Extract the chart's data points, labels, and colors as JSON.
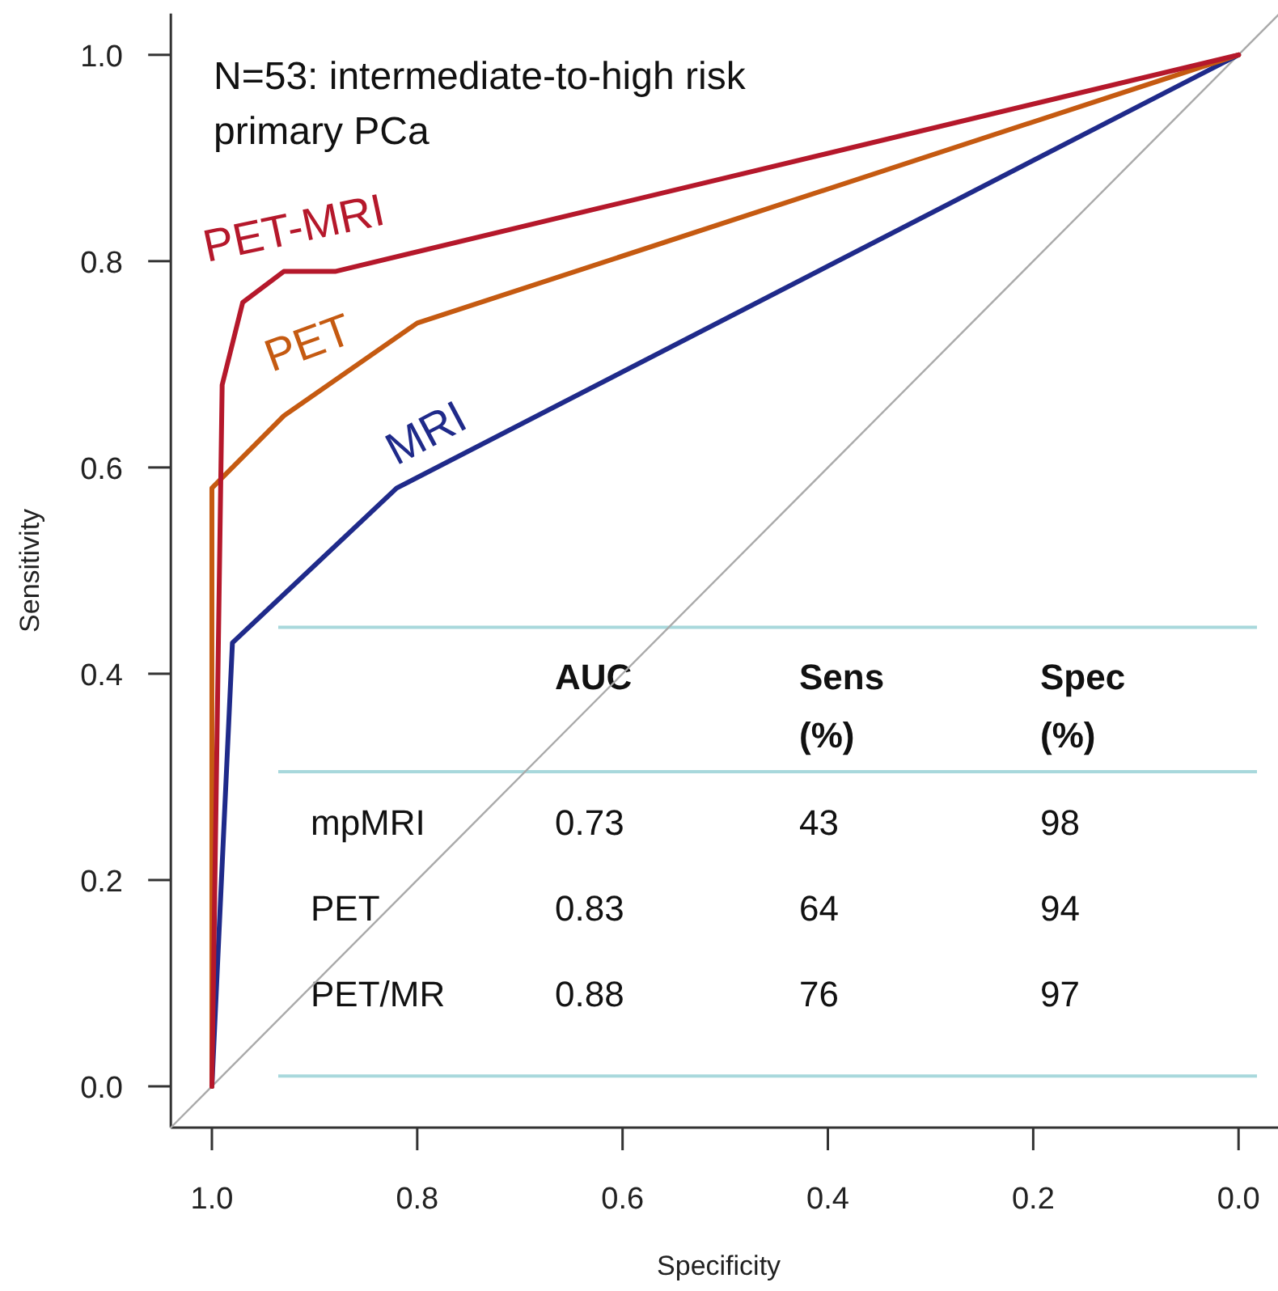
{
  "chart_data": {
    "type": "line",
    "title": "N=53: intermediate-to-high risk primary PCa",
    "xlabel": "Specificity",
    "ylabel": "Sensitivity",
    "xlim": [
      1.04,
      -0.04
    ],
    "ylim": [
      -0.04,
      1.04
    ],
    "xticks": [
      {
        "value": 1,
        "label": "1.0"
      },
      {
        "value": 0.8,
        "label": "0.8"
      },
      {
        "value": 0.6,
        "label": "0.6"
      },
      {
        "value": 0.4,
        "label": "0.4"
      },
      {
        "value": 0.2,
        "label": "0.2"
      },
      {
        "value": 0,
        "label": "0.0"
      }
    ],
    "yticks": [
      {
        "value": 0,
        "label": "0.0"
      },
      {
        "value": 0.2,
        "label": "0.2"
      },
      {
        "value": 0.4,
        "label": "0.4"
      },
      {
        "value": 0.6,
        "label": "0.6"
      },
      {
        "value": 0.8,
        "label": "0.8"
      },
      {
        "value": 1,
        "label": "1.0"
      }
    ],
    "grid": false,
    "ref_lines": [
      {
        "axis": "y",
        "value": 0.445,
        "color": "#a8d8dc"
      },
      {
        "axis": "y",
        "value": 0.305,
        "color": "#a8d8dc"
      },
      {
        "axis": "y",
        "value": 0.01,
        "color": "#a8d8dc"
      }
    ],
    "series": [
      {
        "color": "#aaaaaa",
        "x": [
          1.04,
          -0.04
        ],
        "values": [
          -0.04,
          1.04
        ]
      },
      {
        "name": "MRI",
        "color": "#1f2a8a",
        "x": [
          1.0,
          0.98,
          0.82,
          0
        ],
        "values": [
          0,
          0.43,
          0.58,
          1
        ]
      },
      {
        "name": "PET",
        "color": "#c55a11",
        "x": [
          1.0,
          1.0,
          0.99,
          0.93,
          0.8,
          0
        ],
        "values": [
          0,
          0.58,
          0.59,
          0.65,
          0.74,
          1
        ]
      },
      {
        "name": "PET-MRI",
        "color": "#b5182b",
        "x": [
          1.0,
          0.99,
          0.97,
          0.93,
          0.88,
          0
        ],
        "values": [
          0,
          0.68,
          0.76,
          0.79,
          0.79,
          1
        ]
      }
    ],
    "annotations": [
      "AUC",
      "Sens (%)",
      "Spec (%)",
      "mpMRI",
      "0.73",
      "43",
      "98",
      "PET",
      "0.83",
      "64",
      "94",
      "PET/MR",
      "0.88",
      "76",
      "97"
    ]
  }
}
